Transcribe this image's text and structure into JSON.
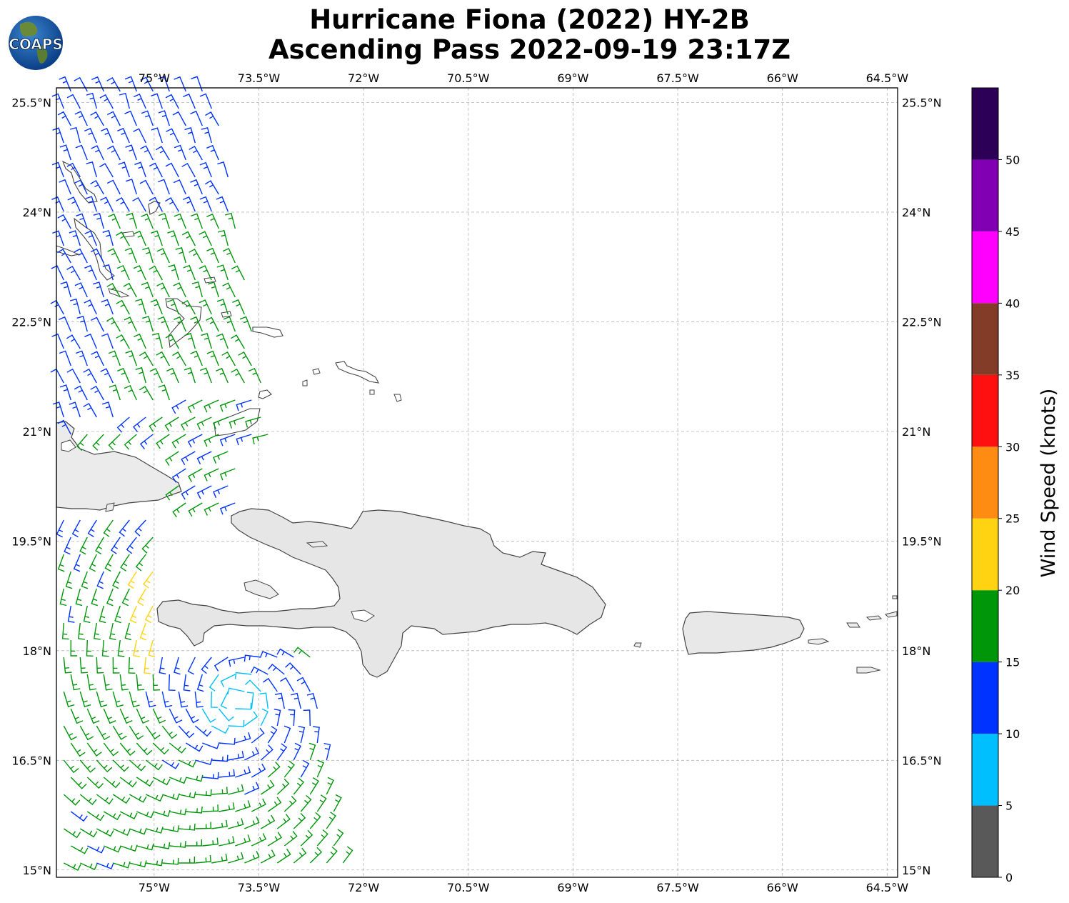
{
  "title_line1": "Hurricane Fiona (2022) HY-2B",
  "title_line2": "Ascending Pass 2022-09-19 23:17Z",
  "logo_text": "COAPS",
  "logo_icon": "globe-logo",
  "map": {
    "lon_range": [
      -76.4,
      -64.35
    ],
    "lat_range": [
      14.9,
      25.7
    ],
    "lon_ticks": [
      {
        "value": -75,
        "label": "75°W"
      },
      {
        "value": -73.5,
        "label": "73.5°W"
      },
      {
        "value": -72,
        "label": "72°W"
      },
      {
        "value": -70.5,
        "label": "70.5°W"
      },
      {
        "value": -69,
        "label": "69°W"
      },
      {
        "value": -67.5,
        "label": "67.5°W"
      },
      {
        "value": -66,
        "label": "66°W"
      },
      {
        "value": -64.5,
        "label": "64.5°W"
      }
    ],
    "lat_ticks": [
      {
        "value": 25.5,
        "label": "25.5°N"
      },
      {
        "value": 24,
        "label": "24°N"
      },
      {
        "value": 22.5,
        "label": "22.5°N"
      },
      {
        "value": 21,
        "label": "21°N"
      },
      {
        "value": 19.5,
        "label": "19.5°N"
      },
      {
        "value": 18,
        "label": "18°N"
      },
      {
        "value": 16.5,
        "label": "16.5°N"
      },
      {
        "value": 15,
        "label": "15°N"
      }
    ],
    "gridlines": true,
    "wind_barbs_symbol": "wind-barb",
    "storm_center": {
      "lon": -73.8,
      "lat": 17.3
    }
  },
  "colorbar": {
    "label": "Wind Speed (knots)",
    "bins": [
      {
        "from": 0,
        "to": 5,
        "color": "#595959"
      },
      {
        "from": 5,
        "to": 10,
        "color": "#00bfff"
      },
      {
        "from": 10,
        "to": 15,
        "color": "#0033ff"
      },
      {
        "from": 15,
        "to": 20,
        "color": "#00960a"
      },
      {
        "from": 20,
        "to": 25,
        "color": "#ffd312"
      },
      {
        "from": 25,
        "to": 30,
        "color": "#ff8c12"
      },
      {
        "from": 30,
        "to": 35,
        "color": "#ff1010"
      },
      {
        "from": 35,
        "to": 40,
        "color": "#823c28"
      },
      {
        "from": 40,
        "to": 45,
        "color": "#ff00ff"
      },
      {
        "from": 45,
        "to": 50,
        "color": "#8200b4"
      },
      {
        "from": 50,
        "to": 55,
        "color": "#2d0058"
      }
    ],
    "ticks": [
      0,
      5,
      10,
      15,
      20,
      25,
      30,
      35,
      40,
      45,
      50
    ]
  }
}
